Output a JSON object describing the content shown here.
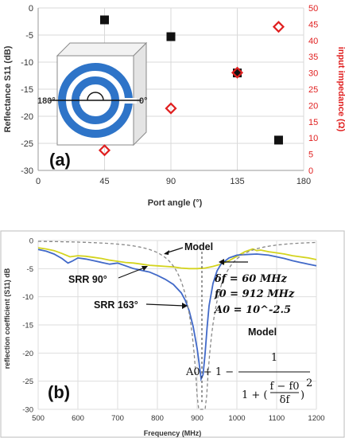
{
  "chart_data": [
    {
      "type": "scatter",
      "panel_label": "(a)",
      "xlabel": "Port angle (°)",
      "ylabel": "Reflectance S11 (dB)",
      "y2label": "input impedance (Ω)",
      "xlim": [
        0,
        180
      ],
      "ylim": [
        -30,
        0
      ],
      "y2lim": [
        0,
        50
      ],
      "xticks": [
        0,
        45,
        90,
        135,
        180
      ],
      "yticks": [
        0,
        -5,
        -10,
        -15,
        -20,
        -25,
        -30
      ],
      "y2ticks": [
        0,
        5,
        10,
        15,
        20,
        25,
        30,
        35,
        40,
        45,
        50
      ],
      "grid": true,
      "inset_labels": {
        "left": "180°",
        "right": "0°"
      },
      "series": [
        {
          "axis": "left",
          "marker": "filled-square",
          "color": "#111111",
          "x": [
            45,
            90,
            135,
            163
          ],
          "y": [
            -2.2,
            -5.3,
            -12.0,
            -24.4
          ]
        },
        {
          "axis": "right",
          "marker": "open-diamond",
          "color": "#e02020",
          "x": [
            45,
            90,
            135,
            163
          ],
          "y": [
            6.2,
            19.1,
            30.1,
            44.2
          ]
        }
      ]
    },
    {
      "type": "line",
      "panel_label": "(b)",
      "xlabel": "Frequency (MHz)",
      "ylabel": "reflection coefficient (S11) dB",
      "xlim": [
        500,
        1200
      ],
      "ylim": [
        -30,
        0
      ],
      "xticks": [
        500,
        600,
        700,
        800,
        900,
        1000,
        1100,
        1200
      ],
      "yticks": [
        0,
        -5,
        -10,
        -15,
        -20,
        -25,
        -30
      ],
      "grid": true,
      "annotations": {
        "model": "Model",
        "srr90": "SRR 90°",
        "srr163": "SRR 163°",
        "delta_f": "δf = 60 MHz",
        "f0": "f0 = 912 MHz",
        "a0": "A0 = 10^-2.5",
        "formula_title": "Model",
        "formula_lead": "A0 + 1 −",
        "formula_num": "1",
        "formula_den_1": "1 + (",
        "formula_den_num": "f − f0",
        "formula_den_den": "δf",
        "formula_den_2": ")",
        "formula_exp": "2"
      },
      "series": [
        {
          "name": "SRR 90°",
          "color": "#d4d41e",
          "x": [
            500,
            520,
            540,
            560,
            580,
            600,
            620,
            640,
            660,
            680,
            700,
            720,
            740,
            760,
            780,
            800,
            820,
            840,
            860,
            880,
            900,
            920,
            940,
            960,
            980,
            1000,
            1020,
            1040,
            1050,
            1060,
            1080,
            1100,
            1120,
            1140,
            1160,
            1180,
            1200
          ],
          "y": [
            -1.3,
            -1.5,
            -1.8,
            -2.3,
            -2.9,
            -2.7,
            -2.8,
            -3.0,
            -3.2,
            -3.5,
            -3.7,
            -3.9,
            -4.0,
            -4.2,
            -4.4,
            -4.5,
            -4.6,
            -4.7,
            -4.9,
            -5.0,
            -5.0,
            -4.9,
            -4.6,
            -4.2,
            -3.6,
            -2.8,
            -2.0,
            -1.5,
            -1.8,
            -1.7,
            -2.0,
            -2.2,
            -2.4,
            -2.7,
            -2.9,
            -3.1,
            -3.4
          ]
        },
        {
          "name": "SRR 163°",
          "color": "#4169c8",
          "x": [
            500,
            520,
            540,
            560,
            575,
            585,
            600,
            620,
            640,
            660,
            680,
            700,
            720,
            740,
            760,
            780,
            800,
            820,
            840,
            860,
            870,
            880,
            890,
            900,
            905,
            910,
            915,
            920,
            925,
            930,
            940,
            950,
            960,
            980,
            1000,
            1020,
            1050,
            1080,
            1100,
            1120,
            1140,
            1160,
            1180,
            1200
          ],
          "y": [
            -1.6,
            -1.9,
            -2.4,
            -3.2,
            -4.0,
            -3.7,
            -3.1,
            -3.3,
            -3.6,
            -3.9,
            -4.2,
            -4.0,
            -4.5,
            -5.0,
            -5.3,
            -5.6,
            -6.2,
            -6.9,
            -7.8,
            -9.3,
            -10.6,
            -12.5,
            -15.3,
            -19.2,
            -21.8,
            -24.6,
            -23.8,
            -20.1,
            -15.5,
            -11.6,
            -7.6,
            -5.4,
            -4.2,
            -3.1,
            -2.6,
            -2.5,
            -2.4,
            -2.6,
            -2.9,
            -3.2,
            -3.6,
            -3.9,
            -4.2,
            -4.5
          ]
        },
        {
          "name": "Model",
          "color": "#888888",
          "dashed": true,
          "model": {
            "A0": 0.00316,
            "f0": 912,
            "df": 60
          }
        }
      ]
    }
  ]
}
